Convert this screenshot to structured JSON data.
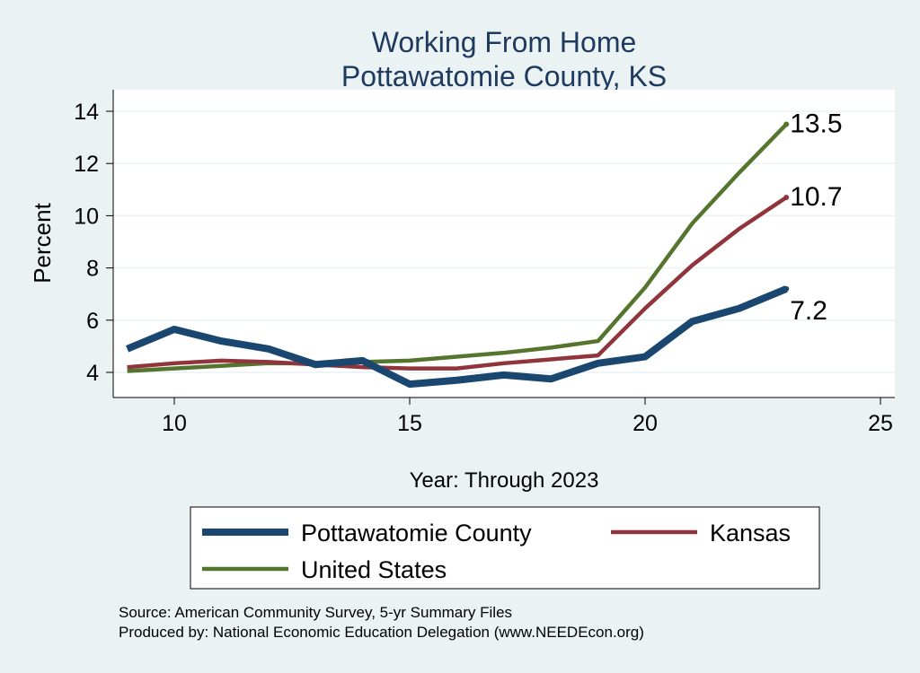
{
  "chart_data": {
    "type": "line",
    "title": "Working From Home",
    "subtitle": "Pottawatomie County, KS",
    "xlabel": "Year: Through 2023",
    "ylabel": "Percent",
    "xlim": [
      8.7,
      25.3
    ],
    "ylim": [
      3.0,
      14.9
    ],
    "xticks": [
      10,
      15,
      20,
      25
    ],
    "yticks": [
      4,
      6,
      8,
      10,
      12,
      14
    ],
    "grid": true,
    "x": [
      9,
      10,
      11,
      12,
      13,
      14,
      15,
      16,
      17,
      18,
      19,
      20,
      21,
      22,
      23
    ],
    "series": [
      {
        "name": "Pottawatomie County",
        "color": "#1a476f",
        "width": 8,
        "values": [
          4.9,
          5.65,
          5.2,
          4.9,
          4.3,
          4.45,
          3.55,
          3.7,
          3.9,
          3.75,
          4.35,
          4.6,
          5.95,
          6.45,
          7.2
        ],
        "end_label": "7.2"
      },
      {
        "name": "Kansas",
        "color": "#90353b",
        "width": 4.5,
        "values": [
          4.2,
          4.35,
          4.45,
          4.4,
          4.3,
          4.2,
          4.15,
          4.15,
          4.35,
          4.5,
          4.65,
          6.45,
          8.1,
          9.5,
          10.7
        ],
        "end_label": "10.7"
      },
      {
        "name": "United States",
        "color": "#55752f",
        "width": 4.5,
        "values": [
          4.05,
          4.15,
          4.25,
          4.35,
          4.35,
          4.4,
          4.45,
          4.6,
          4.75,
          4.95,
          5.2,
          7.25,
          9.7,
          11.65,
          13.5
        ],
        "end_label": "13.5"
      }
    ],
    "legend_placement": "bottom",
    "notes": [
      "Source: American Community Survey, 5-yr Summary Files",
      "Produced by: National Economic Education Delegation (www.NEEDEcon.org)"
    ]
  }
}
